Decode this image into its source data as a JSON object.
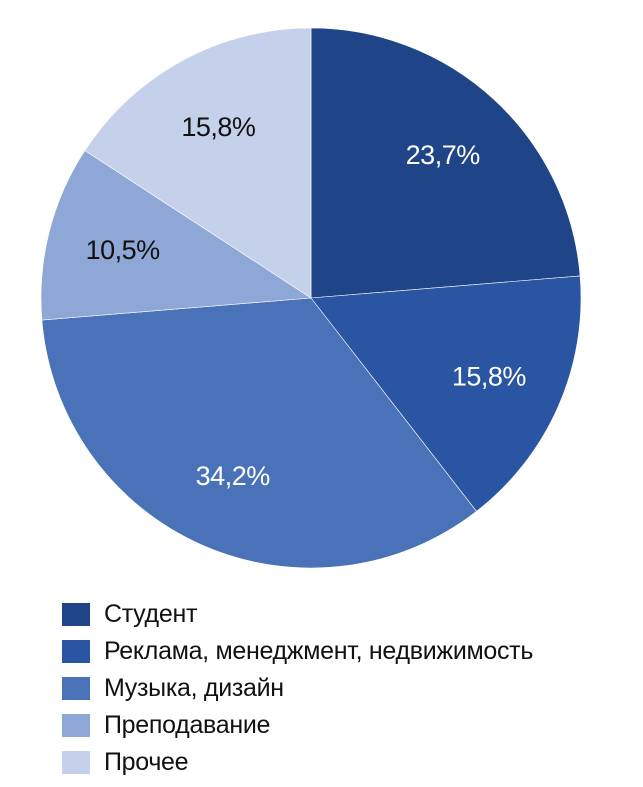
{
  "chart_data": {
    "type": "pie",
    "title": "",
    "start": "12 o'clock",
    "direction": "clockwise",
    "legend_position": "bottom-left",
    "slices": [
      {
        "label": "Студент",
        "value": 23.7,
        "display": "23,7%",
        "color": "#1f4488",
        "text_color": "#ffffff"
      },
      {
        "label": "Реклама, менеджмент, недвижимость",
        "value": 15.8,
        "display": "15,8%",
        "color": "#2a55a3",
        "text_color": "#ffffff"
      },
      {
        "label": "Музыка, дизайн",
        "value": 34.2,
        "display": "34,2%",
        "color": "#4a72b8",
        "text_color": "#ffffff"
      },
      {
        "label": "Преподавание",
        "value": 10.5,
        "display": "10,5%",
        "color": "#8fa7d6",
        "text_color": "#111111"
      },
      {
        "label": "Прочее",
        "value": 15.8,
        "display": "15,8%",
        "color": "#c5d0eb",
        "text_color": "#111111"
      }
    ]
  }
}
